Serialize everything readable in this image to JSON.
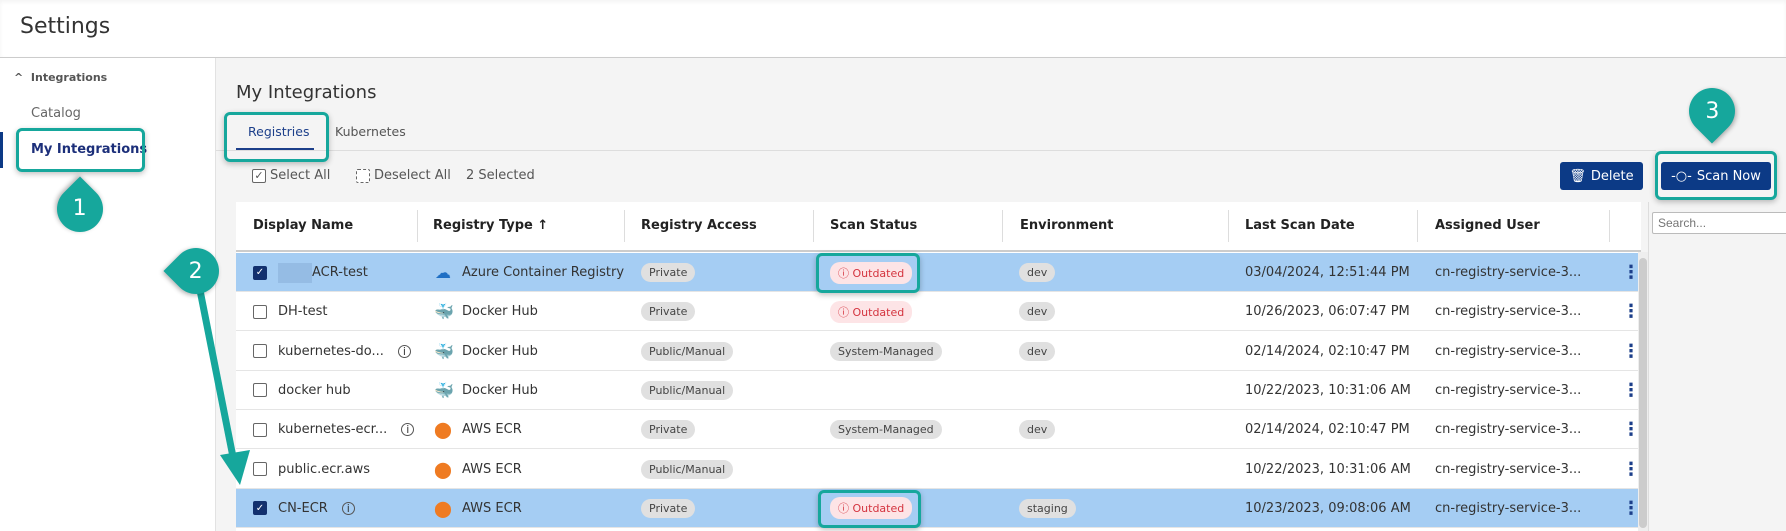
{
  "app": {
    "title": "Settings"
  },
  "sidebar": {
    "group": "Integrations",
    "items": [
      {
        "label": "Catalog"
      },
      {
        "label": "My Integrations",
        "active": true
      }
    ]
  },
  "main": {
    "title": "My Integrations",
    "tabs": [
      {
        "label": "Registries",
        "active": true
      },
      {
        "label": "Kubernetes"
      }
    ]
  },
  "toolbar": {
    "select_all": "Select All",
    "deselect_all": "Deselect All",
    "selected_count": "2 Selected",
    "delete": "Delete",
    "scan_now": "Scan Now"
  },
  "search": {
    "placeholder": "Search..."
  },
  "table": {
    "columns": [
      "Display Name",
      "Registry Type",
      "Registry Access",
      "Scan Status",
      "Environment",
      "Last Scan Date",
      "Assigned User"
    ],
    "sort_indicator": "↑",
    "rows": [
      {
        "name": "ACR-test",
        "selected": true,
        "info": false,
        "type": "Azure Container Registry",
        "type_icon": "azure-icon",
        "access": "Private",
        "scan": "Outdated",
        "env": "dev",
        "date": "03/04/2024, 12:51:44 PM",
        "user": "cn-registry-service-3..."
      },
      {
        "name": "DH-test",
        "selected": false,
        "info": false,
        "type": "Docker Hub",
        "type_icon": "docker-icon",
        "access": "Private",
        "scan": "Outdated",
        "env": "dev",
        "date": "10/26/2023, 06:07:47 PM",
        "user": "cn-registry-service-3..."
      },
      {
        "name": "kubernetes-do...",
        "selected": false,
        "info": true,
        "type": "Docker Hub",
        "type_icon": "docker-icon",
        "access": "Public/Manual",
        "scan": "System-Managed",
        "env": "dev",
        "date": "02/14/2024, 02:10:47 PM",
        "user": "cn-registry-service-3..."
      },
      {
        "name": "docker hub",
        "selected": false,
        "info": false,
        "type": "Docker Hub",
        "type_icon": "docker-icon",
        "access": "Public/Manual",
        "scan": "",
        "env": "",
        "date": "10/22/2023, 10:31:06 AM",
        "user": "cn-registry-service-3..."
      },
      {
        "name": "kubernetes-ecr...",
        "selected": false,
        "info": true,
        "type": "AWS ECR",
        "type_icon": "aws-ecr-icon",
        "access": "Private",
        "scan": "System-Managed",
        "env": "dev",
        "date": "02/14/2024, 02:10:47 PM",
        "user": "cn-registry-service-3..."
      },
      {
        "name": "public.ecr.aws",
        "selected": false,
        "info": false,
        "type": "AWS ECR",
        "type_icon": "aws-ecr-icon",
        "access": "Public/Manual",
        "scan": "",
        "env": "",
        "date": "10/22/2023, 10:31:06 AM",
        "user": "cn-registry-service-3..."
      },
      {
        "name": "CN-ECR",
        "selected": true,
        "info": true,
        "type": "AWS ECR",
        "type_icon": "aws-ecr-icon",
        "access": "Private",
        "scan": "Outdated",
        "env": "staging",
        "date": "10/23/2023, 09:08:06 AM",
        "user": "cn-registry-service-3..."
      }
    ]
  },
  "annotations": {
    "markers": [
      "1",
      "2",
      "3"
    ],
    "color": "#16a79c"
  },
  "colors": {
    "primary": "#0c3a86",
    "selected_row": "#a5cdf3",
    "outdated": "#d4343f"
  }
}
